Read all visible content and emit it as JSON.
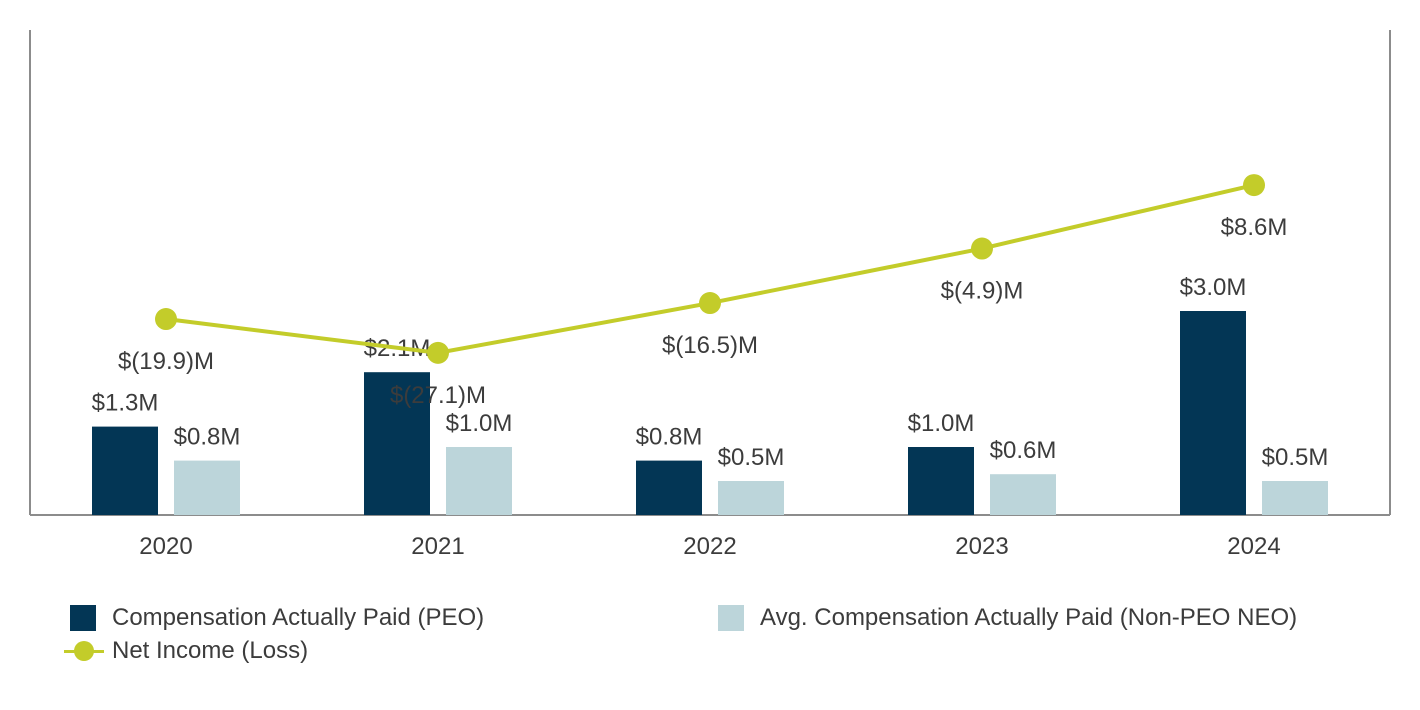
{
  "chart_data": {
    "type": "bar",
    "categories": [
      "2020",
      "2021",
      "2022",
      "2023",
      "2024"
    ],
    "series": [
      {
        "name": "Compensation Actually Paid (PEO)",
        "kind": "bar",
        "color": "#033655",
        "values": [
          1.3,
          2.1,
          0.8,
          1.0,
          3.0
        ],
        "labels": [
          "$1.3M",
          "$2.1M",
          "$0.8M",
          "$1.0M",
          "$3.0M"
        ]
      },
      {
        "name": "Avg. Compensation Actually Paid (Non-PEO NEO)",
        "kind": "bar",
        "color": "#bcd5da",
        "values": [
          0.8,
          1.0,
          0.5,
          0.6,
          0.5
        ],
        "labels": [
          "$0.8M",
          "$1.0M",
          "$0.5M",
          "$0.6M",
          "$0.5M"
        ]
      },
      {
        "name": "Net Income (Loss)",
        "kind": "line",
        "axis": "secondary",
        "color": "#c3cc2a",
        "values": [
          -19.9,
          -27.1,
          -16.5,
          -4.9,
          8.6
        ],
        "labels": [
          "$(19.9)M",
          "$(27.1)M",
          "$(16.5)M",
          "$(4.9)M",
          "$8.6M"
        ]
      }
    ],
    "ylim": [
      0,
      7
    ],
    "y2lim": [
      -40,
      15
    ],
    "title": "",
    "xlabel": "",
    "ylabel": "",
    "grid": false,
    "legend_position": "bottom"
  }
}
